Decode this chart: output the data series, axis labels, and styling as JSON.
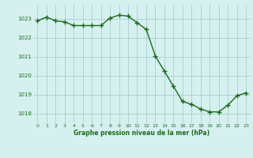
{
  "hours": [
    0,
    1,
    2,
    3,
    4,
    5,
    6,
    7,
    8,
    9,
    10,
    11,
    12,
    13,
    14,
    15,
    16,
    17,
    18,
    19,
    20,
    21,
    22,
    23
  ],
  "pressure": [
    1022.9,
    1023.1,
    1022.9,
    1022.85,
    1022.65,
    1022.65,
    1022.65,
    1022.65,
    1023.05,
    1023.2,
    1023.15,
    1022.8,
    1022.45,
    1021.05,
    1020.25,
    1019.45,
    1018.65,
    1018.5,
    1018.25,
    1018.1,
    1018.1,
    1018.45,
    1018.95,
    1019.1
  ],
  "line_color": "#1a6b1a",
  "marker_color": "#1a6b1a",
  "bg_color": "#d6f0f0",
  "grid_color": "#a0c8c8",
  "xlabel": "Graphe pression niveau de la mer (hPa)",
  "xlabel_color": "#1a6b1a",
  "tick_color": "#1a6b1a",
  "ylim": [
    1017.5,
    1023.75
  ],
  "yticks": [
    1018,
    1019,
    1020,
    1021,
    1022,
    1023
  ],
  "xticks": [
    0,
    1,
    2,
    3,
    4,
    5,
    6,
    7,
    8,
    9,
    10,
    11,
    12,
    13,
    14,
    15,
    16,
    17,
    18,
    19,
    20,
    21,
    22,
    23
  ],
  "marker_size": 4,
  "line_width": 1.0
}
